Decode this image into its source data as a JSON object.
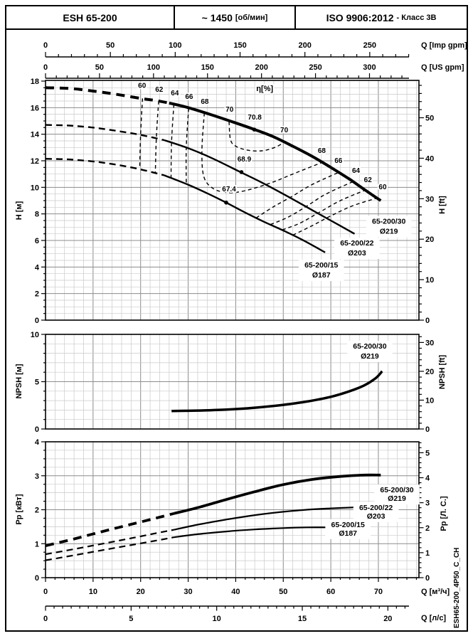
{
  "header": {
    "model": "ESH 65-200",
    "speed": "~ 1450",
    "speed_unit": "[об/мин]",
    "standard": "ISO 9906:2012",
    "standard_class": "- Класс 3В"
  },
  "side_label": "ESH65-200_4P50_C_CH",
  "chart_data": {
    "type": "line",
    "x_axes": {
      "imp_gpm": {
        "label": "Q [Imp gpm]",
        "majors": [
          0,
          50,
          100,
          150,
          200,
          250
        ],
        "minor_step": 10,
        "max": 280,
        "m3h_per_unit": 0.27276
      },
      "us_gpm": {
        "label": "Q [US gpm]",
        "majors": [
          0,
          50,
          100,
          150,
          200,
          250,
          300
        ],
        "minor_step": 10,
        "max": 335,
        "m3h_per_unit": 0.22712
      },
      "m3h": {
        "label": "Q [м³/ч]",
        "majors": [
          0,
          10,
          20,
          30,
          40,
          50,
          60,
          70
        ],
        "minor_step": 2,
        "max": 78,
        "m3h_per_unit": 1
      },
      "ls": {
        "label": "Q [л/с]",
        "majors": [
          0,
          5,
          10,
          15,
          20
        ],
        "minor_step": 0.5,
        "max": 21,
        "m3h_per_unit": 3.6
      }
    },
    "head_chart": {
      "y_left": {
        "label": "H [м]",
        "min": 0,
        "max": 18,
        "major_step": 2,
        "minor_step": 0.5
      },
      "y_right": {
        "label": "H [ft]",
        "labeled": [
          0,
          10,
          20,
          30,
          40,
          50
        ],
        "minor_step": 2,
        "max": 58,
        "m_per_unit": 0.3048
      },
      "eta_label": {
        "text": "η[%]",
        "q": 46.1,
        "h": 17.25
      },
      "curves": [
        {
          "name": "65-200/30",
          "diameter": "Ø219",
          "weight": "thick",
          "dashed": [
            [
              0,
              17.5
            ],
            [
              5,
              17.45
            ],
            [
              10,
              17.25
            ],
            [
              15,
              17.0
            ],
            [
              20,
              16.7
            ],
            [
              23,
              16.55
            ],
            [
              26,
              16.35
            ]
          ],
          "solid": [
            [
              26,
              16.35
            ],
            [
              30,
              16.0
            ],
            [
              35,
              15.45
            ],
            [
              40,
              14.85
            ],
            [
              44,
              14.35
            ],
            [
              48,
              13.8
            ],
            [
              52,
              13.1
            ],
            [
              56,
              12.35
            ],
            [
              60,
              11.5
            ],
            [
              64,
              10.6
            ],
            [
              67,
              9.85
            ],
            [
              70.5,
              9.0
            ]
          ],
          "label": {
            "q": 72.2,
            "h1": 7.25,
            "h2": 6.5
          }
        },
        {
          "name": "65-200/22",
          "diameter": "Ø203",
          "weight": "normal",
          "dashed": [
            [
              0,
              14.7
            ],
            [
              5,
              14.65
            ],
            [
              10,
              14.5
            ],
            [
              15,
              14.25
            ],
            [
              20,
              13.95
            ],
            [
              25,
              13.55
            ]
          ],
          "solid": [
            [
              25,
              13.55
            ],
            [
              30,
              12.95
            ],
            [
              35,
              12.2
            ],
            [
              41,
              11.15
            ],
            [
              45,
              10.45
            ],
            [
              50,
              9.5
            ],
            [
              55,
              8.5
            ],
            [
              60,
              7.5
            ],
            [
              65,
              6.5
            ]
          ],
          "label": {
            "q": 65.5,
            "h1": 5.62,
            "h2": 4.87
          }
        },
        {
          "name": "65-200/15",
          "diameter": "Ø187",
          "weight": "normal",
          "dashed": [
            [
              0,
              12.15
            ],
            [
              5,
              12.1
            ],
            [
              10,
              11.95
            ],
            [
              15,
              11.7
            ],
            [
              20,
              11.35
            ],
            [
              25,
              10.9
            ]
          ],
          "solid": [
            [
              25,
              10.9
            ],
            [
              30,
              10.2
            ],
            [
              34,
              9.55
            ],
            [
              38,
              8.85
            ],
            [
              42,
              8.1
            ],
            [
              46,
              7.4
            ],
            [
              50,
              6.75
            ],
            [
              54,
              6.05
            ],
            [
              58.8,
              5.1
            ]
          ],
          "label": {
            "q": 58.0,
            "h1": 3.96,
            "h2": 3.21
          }
        }
      ],
      "bep_points": [
        {
          "q": 43.9,
          "h": 14.35
        },
        {
          "q": 41.2,
          "h": 11.15,
          "label": "68.9",
          "lq": 41.8,
          "lh": 11.95
        },
        {
          "q": 38.0,
          "h": 8.85,
          "label": "67.4",
          "lq": 38.6,
          "lh": 9.7
        }
      ],
      "eta_top_labels": [
        {
          "v": "60",
          "q": 20.3,
          "h": 17.5
        },
        {
          "v": "62",
          "q": 23.9,
          "h": 17.2
        },
        {
          "v": "64",
          "q": 27.2,
          "h": 16.93
        },
        {
          "v": "66",
          "q": 30.2,
          "h": 16.66
        },
        {
          "v": "68",
          "q": 33.5,
          "h": 16.28
        },
        {
          "v": "70",
          "q": 38.7,
          "h": 15.7
        },
        {
          "v": "70.8",
          "q": 44.0,
          "h": 15.1
        }
      ],
      "eta_right_labels": [
        {
          "v": "70",
          "q": 50.2,
          "h": 14.15
        },
        {
          "v": "68",
          "q": 58.1,
          "h": 12.6
        },
        {
          "v": "66",
          "q": 61.6,
          "h": 11.85
        },
        {
          "v": "64",
          "q": 65.3,
          "h": 11.1
        },
        {
          "v": "62",
          "q": 67.8,
          "h": 10.4
        },
        {
          "v": "60",
          "q": 70.9,
          "h": 9.85
        }
      ],
      "efficiency_contours": [
        {
          "id": "60-left",
          "points": [
            [
              20.4,
              16.7
            ],
            [
              20.0,
              14.0
            ],
            [
              19.8,
              11.4
            ]
          ]
        },
        {
          "id": "62-left",
          "points": [
            [
              23.8,
              16.5
            ],
            [
              23.3,
              13.7
            ],
            [
              23.1,
              11.05
            ]
          ]
        },
        {
          "id": "64-left",
          "points": [
            [
              27.0,
              16.25
            ],
            [
              26.5,
              13.4
            ],
            [
              26.4,
              10.7
            ]
          ]
        },
        {
          "id": "66-left",
          "points": [
            [
              30.1,
              15.95
            ],
            [
              29.6,
              13.0
            ],
            [
              29.6,
              10.25
            ]
          ]
        },
        {
          "id": "68-loop",
          "points": [
            [
              33.4,
              15.6
            ],
            [
              32.9,
              12.8
            ],
            [
              33.3,
              10.8
            ],
            [
              35.3,
              9.9
            ],
            [
              38.5,
              9.6
            ],
            [
              42,
              9.75
            ],
            [
              47.5,
              10.35
            ],
            [
              52,
              11.0
            ],
            [
              58,
              11.85
            ]
          ]
        },
        {
          "id": "70-loop",
          "points": [
            [
              38.6,
              14.95
            ],
            [
              38.9,
              13.6
            ],
            [
              40.0,
              13.1
            ],
            [
              42.5,
              12.8
            ],
            [
              45.5,
              12.75
            ],
            [
              48.2,
              13.0
            ],
            [
              50.0,
              13.35
            ]
          ]
        },
        {
          "id": "66-right",
          "points": [
            [
              44.3,
              7.7
            ],
            [
              48,
              8.55
            ],
            [
              52,
              9.35
            ],
            [
              56,
              10.2
            ],
            [
              61.8,
              11.15
            ]
          ]
        },
        {
          "id": "64-right",
          "points": [
            [
              47.3,
              7.2
            ],
            [
              51,
              7.75
            ],
            [
              55,
              8.6
            ],
            [
              59,
              9.5
            ],
            [
              64.8,
              10.45
            ]
          ]
        },
        {
          "id": "62-right",
          "points": [
            [
              49.8,
              6.8
            ],
            [
              53.5,
              7.3
            ],
            [
              57.5,
              8.1
            ],
            [
              62,
              9.0
            ],
            [
              67.3,
              9.8
            ]
          ]
        },
        {
          "id": "60-right",
          "points": [
            [
              52.0,
              6.4
            ],
            [
              56,
              7.1
            ],
            [
              60,
              7.85
            ],
            [
              64.5,
              8.6
            ],
            [
              69.8,
              9.2
            ]
          ]
        }
      ]
    },
    "npsh_chart": {
      "y_left": {
        "label": "NPSH [м]",
        "min": 0,
        "max": 10,
        "major_step": 5,
        "minor_step": 1
      },
      "y_right": {
        "label": "NPSH [ft]",
        "labeled": [
          0,
          10,
          20,
          30
        ],
        "minor_step": 2,
        "max": 32,
        "m_per_unit": 0.3048
      },
      "curve": {
        "name": "65-200/30",
        "diameter": "Ø219",
        "points": [
          [
            26.5,
            1.9
          ],
          [
            32,
            1.95
          ],
          [
            38,
            2.05
          ],
          [
            44,
            2.25
          ],
          [
            50,
            2.55
          ],
          [
            55,
            2.9
          ],
          [
            60,
            3.4
          ],
          [
            64,
            4.0
          ],
          [
            67,
            4.6
          ],
          [
            69.5,
            5.4
          ],
          [
            70.8,
            6.1
          ]
        ],
        "label": {
          "q": 68.2,
          "n1": 8.5,
          "n2": 7.45
        }
      }
    },
    "power_chart": {
      "y_left": {
        "label": "Pp [кВт]",
        "min": 0,
        "max": 4,
        "major_step": 1,
        "minor_step": 0.25
      },
      "y_right": {
        "label": "Pp [Л. С.]",
        "labeled": [
          0,
          1,
          2,
          3,
          4,
          5
        ],
        "minor_step": 0.2,
        "max": 5.4,
        "kw_per_unit": 0.7355
      },
      "curves": [
        {
          "name": "65-200/30",
          "diameter": "Ø219",
          "weight": "thick",
          "dashed": [
            [
              0,
              0.94
            ],
            [
              6,
              1.14
            ],
            [
              12,
              1.36
            ],
            [
              18,
              1.57
            ],
            [
              24,
              1.78
            ],
            [
              27,
              1.89
            ]
          ],
          "solid": [
            [
              27,
              1.89
            ],
            [
              32,
              2.06
            ],
            [
              38,
              2.3
            ],
            [
              44,
              2.53
            ],
            [
              50,
              2.74
            ],
            [
              56,
              2.89
            ],
            [
              62,
              2.98
            ],
            [
              67,
              3.02
            ],
            [
              70.5,
              3.02
            ]
          ],
          "label": {
            "q": 73.9,
            "p1": 2.51,
            "p2": 2.26
          }
        },
        {
          "name": "65-200/22",
          "diameter": "Ø203",
          "weight": "normal",
          "dashed": [
            [
              0,
              0.69
            ],
            [
              6,
              0.84
            ],
            [
              12,
              1.0
            ],
            [
              18,
              1.16
            ],
            [
              24,
              1.33
            ],
            [
              27,
              1.41
            ]
          ],
          "solid": [
            [
              27,
              1.41
            ],
            [
              32,
              1.56
            ],
            [
              38,
              1.71
            ],
            [
              44,
              1.84
            ],
            [
              50,
              1.94
            ],
            [
              56,
              2.01
            ],
            [
              60,
              2.04
            ],
            [
              65,
              2.07
            ]
          ],
          "label": {
            "q": 69.5,
            "p1": 1.99,
            "p2": 1.74
          }
        },
        {
          "name": "65-200/15",
          "diameter": "Ø187",
          "weight": "normal",
          "dashed": [
            [
              0,
              0.51
            ],
            [
              6,
              0.66
            ],
            [
              12,
              0.81
            ],
            [
              18,
              0.96
            ],
            [
              24,
              1.11
            ],
            [
              27,
              1.19
            ]
          ],
          "solid": [
            [
              27,
              1.19
            ],
            [
              32,
              1.28
            ],
            [
              38,
              1.36
            ],
            [
              44,
              1.42
            ],
            [
              50,
              1.46
            ],
            [
              55,
              1.48
            ],
            [
              59,
              1.48
            ]
          ],
          "label": {
            "q": 63.6,
            "p1": 1.49,
            "p2": 1.24
          }
        }
      ]
    }
  }
}
